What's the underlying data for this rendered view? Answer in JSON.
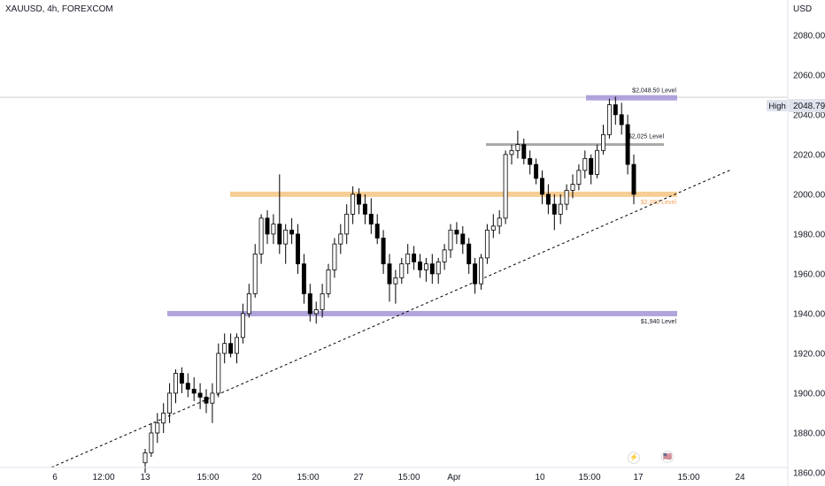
{
  "header": {
    "symbol": "XAUUSD, 4h, FOREXCOM",
    "currency": "USD"
  },
  "price_tag": {
    "label": "High",
    "value": "2048.79"
  },
  "events": [
    {
      "icon": "lightning-icon",
      "glyph": "⚡"
    },
    {
      "icon": "flag-icon",
      "glyph": "🇺🇸"
    }
  ],
  "colors": {
    "up": "#ffffff",
    "down": "#000000",
    "purple": "#a89ad8",
    "orange": "#f5c88a",
    "gray": "#9e9e9e",
    "grid": "#f0f3fa"
  },
  "chart_data": {
    "type": "candlestick",
    "ylim": [
      1860,
      2095
    ],
    "y_ticks": [
      1860,
      1880,
      1900,
      1920,
      1940,
      1960,
      1980,
      2000,
      2020,
      2040,
      2060,
      2080
    ],
    "x_ticks": [
      "6",
      "12:00",
      "13",
      "15:00",
      "20",
      "15:00",
      "27",
      "15:00",
      "Apr",
      "10",
      "15:00",
      "17",
      "15:00",
      "24"
    ],
    "levels": [
      {
        "label": "$2,048.50 Level",
        "value": 2048.5,
        "color": "purple"
      },
      {
        "label": "$2,025 Level",
        "value": 2025,
        "color": "gray"
      },
      {
        "label": "$2,000 Level",
        "value": 2000,
        "color": "orange"
      },
      {
        "label": "$1,940 Level",
        "value": 1940,
        "color": "purple"
      }
    ],
    "trendline": {
      "from": [
        0,
        1860
      ],
      "to": [
        1,
        2015
      ],
      "style": "dashed"
    },
    "candles": [
      [
        1865,
        1872,
        1860,
        1870
      ],
      [
        1870,
        1885,
        1868,
        1880
      ],
      [
        1880,
        1890,
        1875,
        1885
      ],
      [
        1885,
        1895,
        1880,
        1890
      ],
      [
        1890,
        1905,
        1885,
        1900
      ],
      [
        1900,
        1912,
        1895,
        1910
      ],
      [
        1910,
        1913,
        1900,
        1905
      ],
      [
        1905,
        1910,
        1898,
        1902
      ],
      [
        1902,
        1908,
        1896,
        1900
      ],
      [
        1900,
        1905,
        1892,
        1898
      ],
      [
        1898,
        1902,
        1890,
        1895
      ],
      [
        1895,
        1905,
        1885,
        1900
      ],
      [
        1900,
        1925,
        1898,
        1920
      ],
      [
        1920,
        1930,
        1915,
        1925
      ],
      [
        1925,
        1930,
        1918,
        1920
      ],
      [
        1920,
        1930,
        1915,
        1928
      ],
      [
        1928,
        1945,
        1925,
        1940
      ],
      [
        1940,
        1955,
        1938,
        1950
      ],
      [
        1950,
        1975,
        1948,
        1970
      ],
      [
        1970,
        1990,
        1965,
        1988
      ],
      [
        1988,
        1992,
        1975,
        1980
      ],
      [
        1980,
        1990,
        1975,
        1985
      ],
      [
        1985,
        2010,
        1970,
        1975
      ],
      [
        1975,
        1985,
        1965,
        1982
      ],
      [
        1982,
        1988,
        1975,
        1980
      ],
      [
        1980,
        1985,
        1960,
        1965
      ],
      [
        1965,
        1970,
        1945,
        1950
      ],
      [
        1950,
        1955,
        1936,
        1940
      ],
      [
        1940,
        1946,
        1935,
        1942
      ],
      [
        1942,
        1955,
        1938,
        1950
      ],
      [
        1950,
        1965,
        1948,
        1962
      ],
      [
        1962,
        1978,
        1958,
        1975
      ],
      [
        1975,
        1985,
        1970,
        1980
      ],
      [
        1980,
        1995,
        1975,
        1990
      ],
      [
        1990,
        2004,
        1985,
        2000
      ],
      [
        2000,
        2003,
        1990,
        1995
      ],
      [
        1995,
        2000,
        1985,
        1990
      ],
      [
        1990,
        1998,
        1980,
        1985
      ],
      [
        1985,
        1990,
        1975,
        1978
      ],
      [
        1978,
        1982,
        1960,
        1965
      ],
      [
        1965,
        1970,
        1946,
        1955
      ],
      [
        1955,
        1962,
        1945,
        1958
      ],
      [
        1958,
        1968,
        1955,
        1965
      ],
      [
        1965,
        1975,
        1960,
        1970
      ],
      [
        1970,
        1974,
        1962,
        1966
      ],
      [
        1966,
        1970,
        1958,
        1962
      ],
      [
        1962,
        1968,
        1956,
        1965
      ],
      [
        1965,
        1970,
        1955,
        1960
      ],
      [
        1960,
        1968,
        1955,
        1966
      ],
      [
        1966,
        1975,
        1962,
        1972
      ],
      [
        1972,
        1985,
        1968,
        1982
      ],
      [
        1982,
        1986,
        1975,
        1980
      ],
      [
        1980,
        1984,
        1970,
        1975
      ],
      [
        1975,
        1978,
        1960,
        1965
      ],
      [
        1965,
        1968,
        1950,
        1955
      ],
      [
        1955,
        1970,
        1952,
        1968
      ],
      [
        1968,
        1985,
        1965,
        1982
      ],
      [
        1982,
        1990,
        1978,
        1984
      ],
      [
        1984,
        1992,
        1980,
        1988
      ],
      [
        1988,
        2022,
        1985,
        2020
      ],
      [
        2020,
        2025,
        2015,
        2022
      ],
      [
        2022,
        2032,
        2018,
        2025
      ],
      [
        2025,
        2028,
        2015,
        2018
      ],
      [
        2018,
        2022,
        2010,
        2015
      ],
      [
        2015,
        2018,
        2005,
        2008
      ],
      [
        2008,
        2012,
        1995,
        2000
      ],
      [
        2000,
        2005,
        1990,
        1995
      ],
      [
        1995,
        2000,
        1982,
        1990
      ],
      [
        1990,
        2000,
        1985,
        1995
      ],
      [
        1995,
        2005,
        1992,
        2002
      ],
      [
        2002,
        2010,
        1998,
        2005
      ],
      [
        2005,
        2015,
        2002,
        2012
      ],
      [
        2012,
        2022,
        2008,
        2018
      ],
      [
        2018,
        2020,
        2005,
        2010
      ],
      [
        2010,
        2025,
        2008,
        2022
      ],
      [
        2022,
        2035,
        2020,
        2030
      ],
      [
        2030,
        2048,
        2028,
        2045
      ],
      [
        2045,
        2049,
        2035,
        2040
      ],
      [
        2040,
        2046,
        2030,
        2035
      ],
      [
        2035,
        2040,
        2010,
        2015
      ],
      [
        2015,
        2020,
        1995,
        2000
      ]
    ]
  }
}
